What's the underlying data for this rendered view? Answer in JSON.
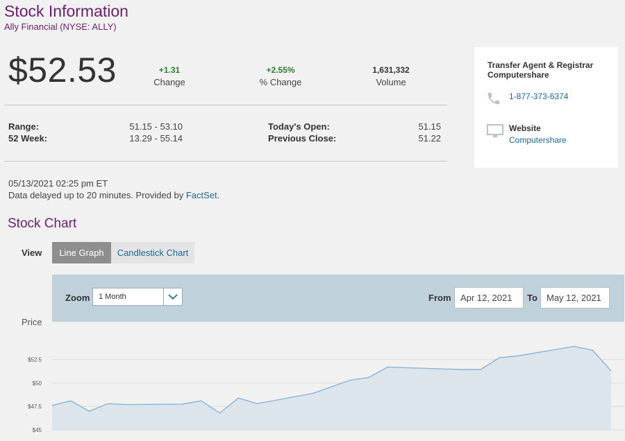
{
  "header": {
    "title": "Stock Information",
    "subtitle": "Ally Financial (NYSE: ALLY)"
  },
  "quote": {
    "price": "$52.53",
    "change": {
      "value": "+1.31",
      "label": "Change"
    },
    "pct_change": {
      "value": "+2.55%",
      "label": "% Change"
    },
    "volume": {
      "value": "1,631,332",
      "label": "Volume"
    }
  },
  "details": {
    "range_label": "Range:",
    "range_value": "51.15 - 53.10",
    "week52_label": "52 Week:",
    "week52_value": "13.29 - 55.14",
    "open_label": "Today's Open:",
    "open_value": "51.15",
    "prev_close_label": "Previous Close:",
    "prev_close_value": "51.22"
  },
  "meta": {
    "timestamp": "05/13/2021 02:25 pm ET",
    "delay_text": "Data delayed up to 20 minutes. Provided by ",
    "provider": "FactSet",
    "delay_end": "."
  },
  "side_card": {
    "agent_title": "Transfer Agent & Registrar Computershare",
    "phone": "1-877-373-6374",
    "website_label": "Website",
    "website_link": "Computershare"
  },
  "chart_section": {
    "title": "Stock Chart",
    "view_label": "View",
    "btn_line": "Line Graph",
    "btn_candle": "Candlestick Chart",
    "zoom_label": "Zoom",
    "zoom_value": "1 Month",
    "from_label": "From",
    "from_value": "Apr 12, 2021",
    "to_label": "To",
    "to_value": "May 12, 2021",
    "price_label": "Price"
  },
  "colors": {
    "accent_purple": "#6b1f6e",
    "link_blue": "#1a6896",
    "positive_green": "#2f7d2f",
    "line": "#7fb2d6",
    "area": "#dce5ec"
  },
  "chart_data": {
    "type": "area",
    "y_ticks": [
      "$52.5",
      "$50",
      "$47.5",
      "$45"
    ],
    "ylim": [
      45,
      55.5
    ],
    "xlim": [
      "2021-04-12",
      "2021-05-12"
    ],
    "grid": true,
    "x": [
      "2021-04-12",
      "2021-04-13",
      "2021-04-14",
      "2021-04-15",
      "2021-04-16",
      "2021-04-19",
      "2021-04-20",
      "2021-04-21",
      "2021-04-22",
      "2021-04-23",
      "2021-04-26",
      "2021-04-27",
      "2021-04-28",
      "2021-04-29",
      "2021-04-30",
      "2021-05-03",
      "2021-05-04",
      "2021-05-05",
      "2021-05-06",
      "2021-05-07",
      "2021-05-10",
      "2021-05-11",
      "2021-05-12"
    ],
    "series": [
      {
        "values": [
          47.6,
          48.1,
          47.0,
          47.8,
          47.7,
          47.75,
          48.1,
          46.8,
          48.4,
          47.8,
          48.9,
          49.6,
          50.3,
          50.6,
          51.7,
          51.5,
          51.45,
          51.45,
          52.7,
          52.9,
          53.9,
          53.5,
          51.3
        ]
      }
    ]
  }
}
